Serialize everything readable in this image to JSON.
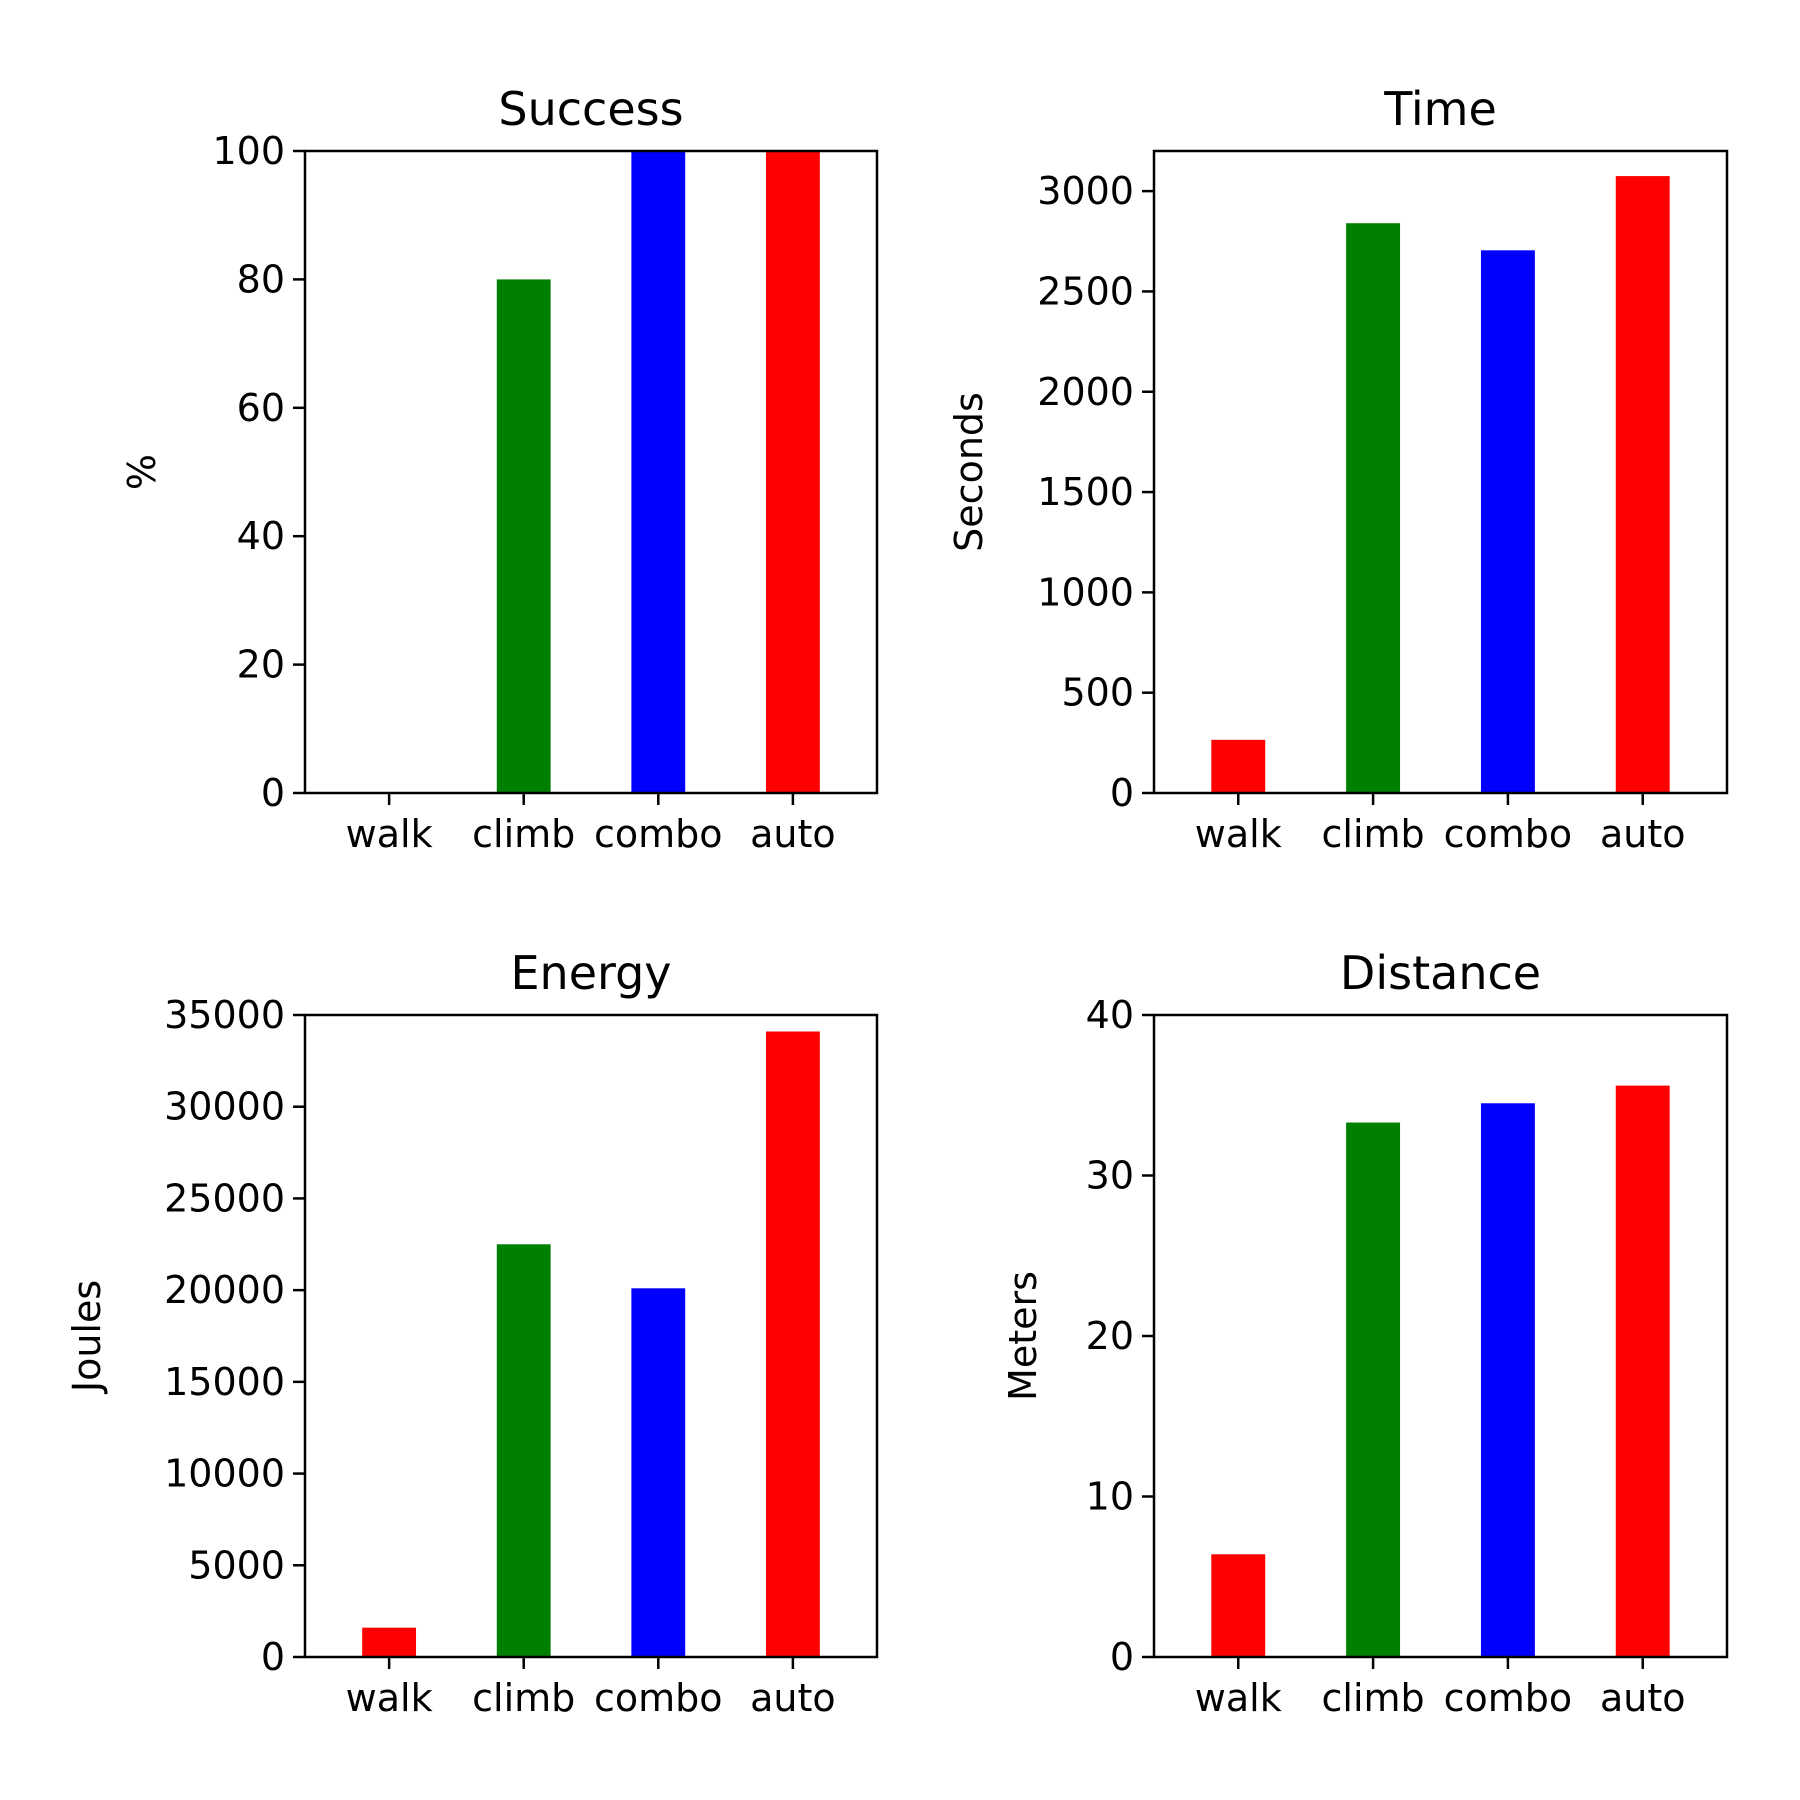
{
  "chart_data": [
    {
      "type": "bar",
      "title": "Success",
      "ylabel": "%",
      "xlabel": "",
      "categories": [
        "walk",
        "climb",
        "combo",
        "auto"
      ],
      "values": [
        0,
        80,
        100,
        100
      ],
      "colors": [
        "#ff0000",
        "#008000",
        "#0000ff",
        "#ff0000"
      ],
      "ylim": [
        0,
        100
      ],
      "yticks": [
        0,
        20,
        40,
        60,
        80,
        100
      ],
      "grid": false
    },
    {
      "type": "bar",
      "title": "Time",
      "ylabel": "Seconds",
      "xlabel": "",
      "categories": [
        "walk",
        "climb",
        "combo",
        "auto"
      ],
      "values": [
        265,
        2840,
        2705,
        3075
      ],
      "colors": [
        "#ff0000",
        "#008000",
        "#0000ff",
        "#ff0000"
      ],
      "ylim": [
        0,
        3200
      ],
      "yticks": [
        0,
        500,
        1000,
        1500,
        2000,
        2500,
        3000
      ],
      "grid": false
    },
    {
      "type": "bar",
      "title": "Energy",
      "ylabel": "Joules",
      "xlabel": "",
      "categories": [
        "walk",
        "climb",
        "combo",
        "auto"
      ],
      "values": [
        1600,
        22500,
        20100,
        34100
      ],
      "colors": [
        "#ff0000",
        "#008000",
        "#0000ff",
        "#ff0000"
      ],
      "ylim": [
        0,
        35000
      ],
      "yticks": [
        0,
        5000,
        10000,
        15000,
        20000,
        25000,
        30000,
        35000
      ],
      "grid": false
    },
    {
      "type": "bar",
      "title": "Distance",
      "ylabel": "Meters",
      "xlabel": "",
      "categories": [
        "walk",
        "climb",
        "combo",
        "auto"
      ],
      "values": [
        6.4,
        33.3,
        34.5,
        35.6
      ],
      "colors": [
        "#ff0000",
        "#008000",
        "#0000ff",
        "#ff0000"
      ],
      "ylim": [
        0,
        40
      ],
      "yticks": [
        0,
        10,
        20,
        30,
        40
      ],
      "grid": false
    }
  ]
}
